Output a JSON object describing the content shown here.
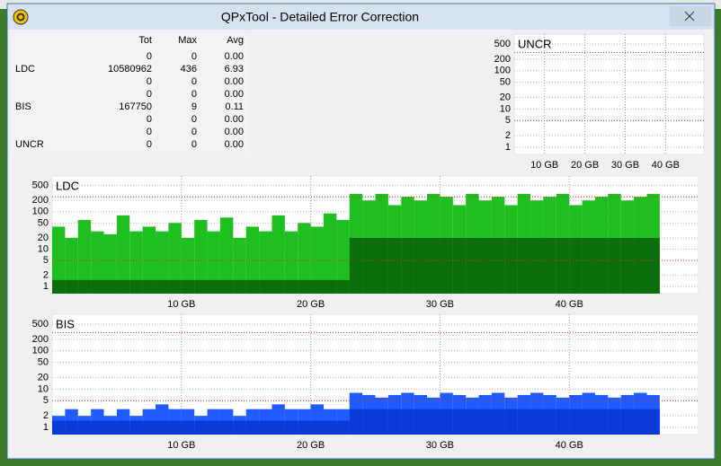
{
  "window": {
    "title": "QPxTool - Detailed Error Correction"
  },
  "stats": {
    "headers": [
      "Tot",
      "Max",
      "Avg"
    ],
    "rows": [
      [
        null,
        "0",
        "0",
        "0.00"
      ],
      [
        "LDC",
        "10580962",
        "436",
        "6.93"
      ],
      [
        null,
        "0",
        "0",
        "0.00"
      ],
      [
        null,
        "0",
        "0",
        "0.00"
      ],
      [
        "BIS",
        "167750",
        "9",
        "0.11"
      ],
      [
        null,
        "0",
        "0",
        "0.00"
      ],
      [
        null,
        "0",
        "0",
        "0.00"
      ],
      [
        "UNCR",
        "0",
        "0",
        "0.00"
      ]
    ]
  },
  "chart_data": [
    {
      "type": "bar",
      "title": "UNCR",
      "log_y": true,
      "grid": true,
      "xlim": [
        2.5,
        49.5
      ],
      "ylim": [
        0.65,
        900
      ],
      "xticks": [
        {
          "value": 10,
          "label": "10 GB"
        },
        {
          "value": 20,
          "label": "20 GB"
        },
        {
          "value": 30,
          "label": "30 GB"
        },
        {
          "value": 40,
          "label": "40 GB"
        }
      ],
      "yticks": [
        1,
        2,
        5,
        10,
        20,
        50,
        100,
        200,
        500
      ],
      "limit_lines": [
        5,
        300
      ],
      "limit_color": "#c0392b",
      "x": [],
      "series": []
    },
    {
      "type": "bar",
      "title": "LDC",
      "log_y": true,
      "grid": true,
      "xlim": [
        0,
        50
      ],
      "ylim": [
        0.65,
        900
      ],
      "xticks": [
        {
          "value": 10,
          "label": "10 GB"
        },
        {
          "value": 20,
          "label": "20 GB"
        },
        {
          "value": 30,
          "label": "30 GB"
        },
        {
          "value": 40,
          "label": "40 GB"
        }
      ],
      "yticks": [
        1,
        2,
        5,
        10,
        20,
        50,
        100,
        200,
        500
      ],
      "limit_lines": [
        5,
        250
      ],
      "limit_color": "#c0392b",
      "x": [
        0.5,
        1.5,
        2.5,
        3.5,
        4.5,
        5.5,
        6.5,
        7.5,
        8.5,
        9.5,
        10.5,
        11.5,
        12.5,
        13.5,
        14.5,
        15.5,
        16.5,
        17.5,
        18.5,
        19.5,
        20.5,
        21.5,
        22.5,
        23.5,
        24.5,
        25.5,
        26.5,
        27.5,
        28.5,
        29.5,
        30.5,
        31.5,
        32.5,
        33.5,
        34.5,
        35.5,
        36.5,
        37.5,
        38.5,
        39.5,
        40.5,
        41.5,
        42.5,
        43.5,
        44.5,
        45.5,
        46.5
      ],
      "series": [
        {
          "color": "#1fbf1f",
          "values": [
            40,
            20,
            60,
            30,
            25,
            80,
            30,
            40,
            30,
            50,
            20,
            60,
            30,
            70,
            20,
            40,
            30,
            80,
            30,
            50,
            40,
            90,
            60,
            300,
            200,
            300,
            150,
            250,
            200,
            300,
            250,
            150,
            300,
            200,
            250,
            150,
            300,
            200,
            250,
            300,
            150,
            200,
            250,
            300,
            200,
            250,
            300
          ]
        },
        {
          "color": "#0b6e0b",
          "values": [
            1.5,
            1.5,
            1.5,
            1.5,
            1.5,
            1.5,
            1.5,
            1.5,
            1.5,
            1.5,
            1.5,
            1.5,
            1.5,
            1.5,
            1.5,
            1.5,
            1.5,
            1.5,
            1.5,
            1.5,
            1.5,
            1.5,
            1.5,
            20,
            20,
            20,
            20,
            20,
            20,
            20,
            20,
            20,
            20,
            20,
            20,
            20,
            20,
            20,
            20,
            20,
            20,
            20,
            20,
            20,
            20,
            20,
            20
          ]
        }
      ]
    },
    {
      "type": "bar",
      "title": "BIS",
      "log_y": true,
      "grid": true,
      "xlim": [
        0,
        50
      ],
      "ylim": [
        0.65,
        900
      ],
      "xticks": [
        {
          "value": 10,
          "label": "10 GB"
        },
        {
          "value": 20,
          "label": "20 GB"
        },
        {
          "value": 30,
          "label": "30 GB"
        },
        {
          "value": 40,
          "label": "40 GB"
        }
      ],
      "yticks": [
        1,
        2,
        5,
        10,
        20,
        50,
        100,
        200,
        500
      ],
      "limit_lines": [
        5,
        300
      ],
      "limit_color": "#c0392b",
      "x": [
        0.5,
        1.5,
        2.5,
        3.5,
        4.5,
        5.5,
        6.5,
        7.5,
        8.5,
        9.5,
        10.5,
        11.5,
        12.5,
        13.5,
        14.5,
        15.5,
        16.5,
        17.5,
        18.5,
        19.5,
        20.5,
        21.5,
        22.5,
        23.5,
        24.5,
        25.5,
        26.5,
        27.5,
        28.5,
        29.5,
        30.5,
        31.5,
        32.5,
        33.5,
        34.5,
        35.5,
        36.5,
        37.5,
        38.5,
        39.5,
        40.5,
        41.5,
        42.5,
        43.5,
        44.5,
        45.5,
        46.5
      ],
      "series": [
        {
          "color": "#1f5bff",
          "values": [
            2,
            3,
            2,
            3,
            2,
            3,
            2,
            3,
            4,
            3,
            3,
            2,
            3,
            3,
            2,
            3,
            3,
            4,
            3,
            3,
            4,
            3,
            3,
            8,
            7,
            6,
            7,
            8,
            7,
            6,
            8,
            7,
            6,
            7,
            8,
            6,
            7,
            8,
            7,
            6,
            7,
            8,
            7,
            6,
            7,
            8,
            7
          ]
        },
        {
          "color": "#0a3ad6",
          "values": [
            1.5,
            1.5,
            1.5,
            1.5,
            1.5,
            1.5,
            1.5,
            1.5,
            1.5,
            1.5,
            1.5,
            1.5,
            1.5,
            1.5,
            1.5,
            1.5,
            1.5,
            1.5,
            1.5,
            1.5,
            1.5,
            1.5,
            1.5,
            3,
            3,
            3,
            3,
            3,
            3,
            3,
            3,
            3,
            3,
            3,
            3,
            3,
            3,
            3,
            3,
            3,
            3,
            3,
            3,
            3,
            3,
            3,
            3
          ]
        }
      ]
    }
  ]
}
